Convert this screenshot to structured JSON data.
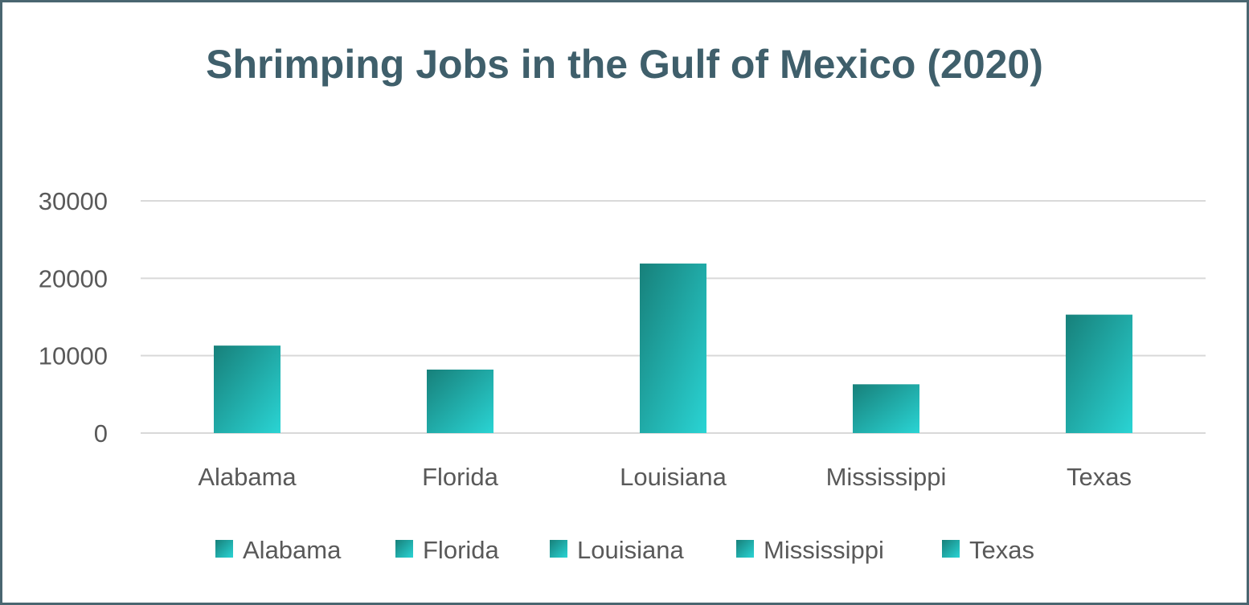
{
  "chart_data": {
    "type": "bar",
    "title": "Shrimping Jobs in the Gulf of Mexico (2020)",
    "xlabel": "",
    "ylabel": "",
    "categories": [
      "Alabama",
      "Florida",
      "Louisiana",
      "Mississippi",
      "Texas"
    ],
    "values": [
      11300,
      8200,
      21900,
      6300,
      15300
    ],
    "ylim": [
      0,
      30000
    ],
    "yticks": [
      "0",
      "10000",
      "20000",
      "30000"
    ],
    "grid": true,
    "legend_position": "bottom",
    "legend": [
      "Alabama",
      "Florida",
      "Louisiana",
      "Mississippi",
      "Texas"
    ]
  },
  "colors": {
    "title": "#3f5f6b",
    "bar_top": "#17807a",
    "bar_bottom": "#2ad4d4",
    "gridline": "#d9d9d9",
    "frame": "#4a6670"
  }
}
